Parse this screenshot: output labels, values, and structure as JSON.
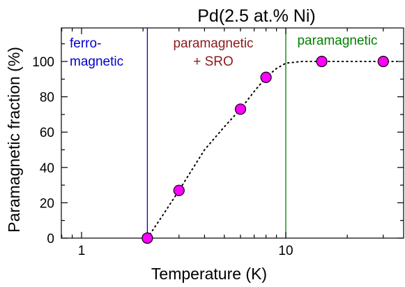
{
  "chart_data": {
    "type": "scatter",
    "title": "Pd(2.5 at.% Ni)",
    "xlabel": "Temperature  (K)",
    "ylabel": "Paramagnetic fraction  (%)",
    "x_scale": "log",
    "xlim": [
      0.8,
      40
    ],
    "ylim": [
      0,
      120
    ],
    "x_tick_labels": [
      {
        "value": 1,
        "label": "1"
      },
      {
        "value": 10,
        "label": "10"
      }
    ],
    "y_tick_labels": [
      {
        "value": 0,
        "label": "0"
      },
      {
        "value": 20,
        "label": "20"
      },
      {
        "value": 40,
        "label": "40"
      },
      {
        "value": 60,
        "label": "60"
      },
      {
        "value": 80,
        "label": "80"
      },
      {
        "value": 100,
        "label": "100"
      }
    ],
    "grid": false,
    "series": [
      {
        "x": [
          2.1,
          3.0,
          6.0,
          8.0,
          15.0,
          30.0
        ],
        "y": [
          0,
          27,
          73,
          91,
          100,
          100
        ],
        "marker_color": "#ff00ff"
      }
    ],
    "fit_curve": {
      "style": "dotted",
      "x": [
        2.1,
        2.5,
        3.0,
        4.0,
        5.0,
        6.0,
        7.0,
        8.0,
        9.0,
        10.0,
        12.0,
        15.0,
        20.0,
        30.0,
        35.0
      ],
      "y": [
        0,
        13,
        27,
        50,
        63,
        73,
        83,
        91,
        96,
        99,
        100,
        100,
        100,
        100,
        100
      ]
    },
    "boundaries": [
      {
        "x": 2.1,
        "color": "#0000cc"
      },
      {
        "x": 10.0,
        "color": "#008000"
      }
    ],
    "regions": [
      {
        "lines": [
          "ferro-",
          "magnetic"
        ],
        "color": "#0000cc"
      },
      {
        "lines": [
          "paramagnetic",
          "+ SRO"
        ],
        "color": "#8b1a1a"
      },
      {
        "lines": [
          "paramagnetic"
        ],
        "color": "#008000"
      }
    ]
  }
}
